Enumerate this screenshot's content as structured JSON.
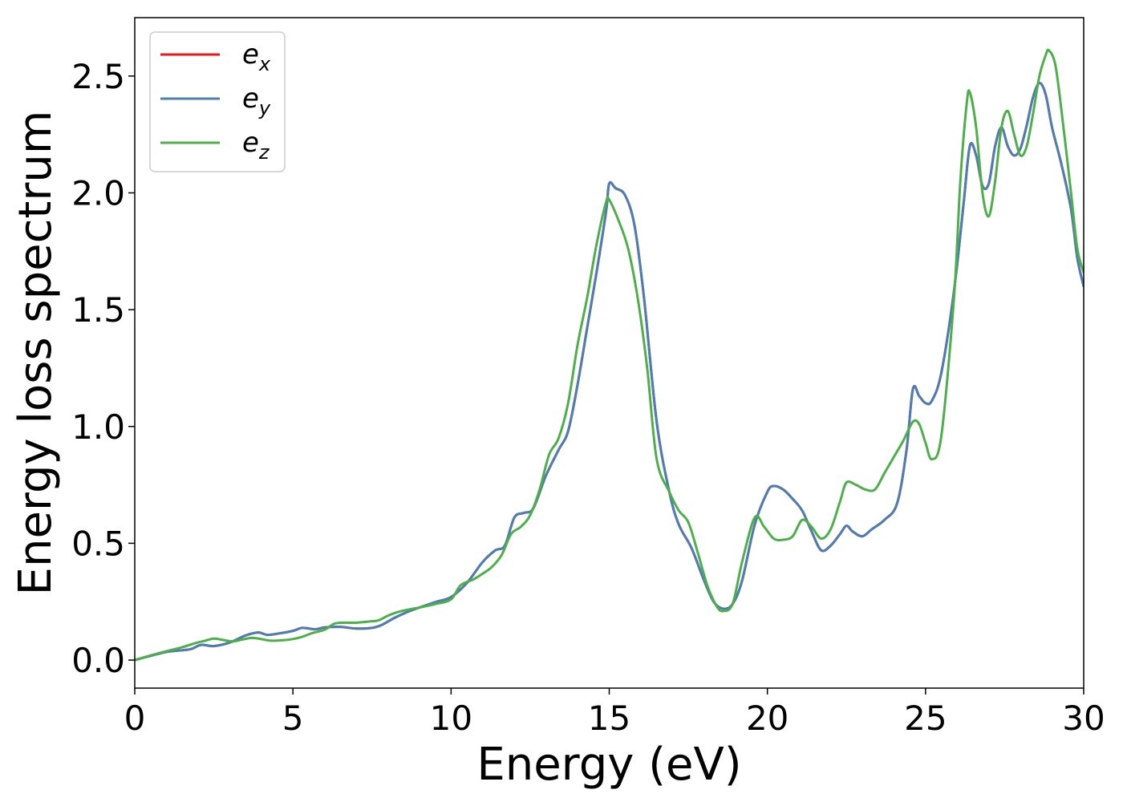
{
  "chart_data": {
    "type": "line",
    "title": "",
    "xlabel": "Energy (eV)",
    "ylabel": "Energy loss spectrum",
    "xlim": [
      0,
      30
    ],
    "ylim": [
      -0.12,
      2.75
    ],
    "x_ticks": [
      0,
      5,
      10,
      15,
      20,
      25,
      30
    ],
    "x_tick_labels": [
      "0",
      "5",
      "10",
      "15",
      "20",
      "25",
      "30"
    ],
    "y_ticks": [
      0.0,
      0.5,
      1.0,
      1.5,
      2.0,
      2.5
    ],
    "y_tick_labels": [
      "0.0",
      "0.5",
      "1.0",
      "1.5",
      "2.0",
      "2.5"
    ],
    "grid": false,
    "legend_position": "top-left",
    "series": [
      {
        "name": "e_x",
        "legend_base": "e",
        "legend_sub": "x",
        "color": "#e41a1c",
        "x": [
          0,
          0.5,
          1.0,
          1.5,
          1.8,
          2.1,
          2.5,
          3.0,
          3.5,
          3.9,
          4.2,
          4.6,
          5.0,
          5.3,
          5.7,
          6.0,
          6.5,
          7.0,
          7.5,
          7.8,
          8.2,
          8.6,
          9.0,
          9.5,
          10.0,
          10.5,
          11.0,
          11.4,
          11.7,
          12.0,
          12.3,
          12.6,
          13.0,
          13.4,
          13.7,
          14.0,
          14.3,
          14.6,
          14.9,
          15.0,
          15.2,
          15.5,
          15.8,
          16.1,
          16.5,
          16.9,
          17.2,
          17.6,
          18.0,
          18.3,
          18.6,
          18.9,
          19.2,
          19.6,
          20.0,
          20.2,
          20.5,
          20.8,
          21.1,
          21.4,
          21.7,
          22.0,
          22.3,
          22.5,
          22.7,
          23.0,
          23.3,
          23.7,
          24.1,
          24.4,
          24.6,
          24.8,
          25.0,
          25.2,
          25.5,
          25.9,
          26.2,
          26.4,
          26.6,
          26.8,
          27.0,
          27.2,
          27.4,
          27.6,
          27.8,
          28.0,
          28.2,
          28.4,
          28.6,
          28.8,
          29.0,
          29.3,
          29.6,
          29.8,
          30.0
        ],
        "y": [
          0.0,
          0.018,
          0.035,
          0.042,
          0.048,
          0.065,
          0.06,
          0.075,
          0.105,
          0.118,
          0.108,
          0.115,
          0.125,
          0.138,
          0.132,
          0.14,
          0.142,
          0.135,
          0.138,
          0.15,
          0.18,
          0.205,
          0.225,
          0.248,
          0.27,
          0.33,
          0.42,
          0.47,
          0.49,
          0.61,
          0.63,
          0.65,
          0.79,
          0.9,
          0.98,
          1.18,
          1.42,
          1.66,
          1.92,
          2.04,
          2.02,
          1.99,
          1.86,
          1.55,
          1.02,
          0.72,
          0.58,
          0.48,
          0.34,
          0.25,
          0.22,
          0.24,
          0.34,
          0.58,
          0.72,
          0.745,
          0.73,
          0.69,
          0.64,
          0.55,
          0.47,
          0.49,
          0.54,
          0.575,
          0.55,
          0.53,
          0.56,
          0.6,
          0.67,
          0.9,
          1.16,
          1.13,
          1.1,
          1.11,
          1.23,
          1.58,
          1.95,
          2.2,
          2.16,
          2.03,
          2.04,
          2.2,
          2.28,
          2.2,
          2.16,
          2.19,
          2.29,
          2.41,
          2.47,
          2.42,
          2.28,
          2.12,
          1.93,
          1.72,
          1.6
        ]
      },
      {
        "name": "e_y",
        "legend_base": "e",
        "legend_sub": "y",
        "color": "#4a7eb5",
        "x": [
          0,
          0.5,
          1.0,
          1.5,
          1.8,
          2.1,
          2.5,
          3.0,
          3.5,
          3.9,
          4.2,
          4.6,
          5.0,
          5.3,
          5.7,
          6.0,
          6.5,
          7.0,
          7.5,
          7.8,
          8.2,
          8.6,
          9.0,
          9.5,
          10.0,
          10.5,
          11.0,
          11.4,
          11.7,
          12.0,
          12.3,
          12.6,
          13.0,
          13.4,
          13.7,
          14.0,
          14.3,
          14.6,
          14.9,
          15.0,
          15.2,
          15.5,
          15.8,
          16.1,
          16.5,
          16.9,
          17.2,
          17.6,
          18.0,
          18.3,
          18.6,
          18.9,
          19.2,
          19.6,
          20.0,
          20.2,
          20.5,
          20.8,
          21.1,
          21.4,
          21.7,
          22.0,
          22.3,
          22.5,
          22.7,
          23.0,
          23.3,
          23.7,
          24.1,
          24.4,
          24.6,
          24.8,
          25.0,
          25.2,
          25.5,
          25.9,
          26.2,
          26.4,
          26.6,
          26.8,
          27.0,
          27.2,
          27.4,
          27.6,
          27.8,
          28.0,
          28.2,
          28.4,
          28.6,
          28.8,
          29.0,
          29.3,
          29.6,
          29.8,
          30.0
        ],
        "y": [
          0.0,
          0.018,
          0.035,
          0.042,
          0.048,
          0.065,
          0.06,
          0.075,
          0.105,
          0.118,
          0.108,
          0.115,
          0.125,
          0.138,
          0.132,
          0.14,
          0.142,
          0.135,
          0.138,
          0.15,
          0.18,
          0.205,
          0.225,
          0.248,
          0.27,
          0.33,
          0.42,
          0.47,
          0.49,
          0.61,
          0.63,
          0.65,
          0.79,
          0.9,
          0.98,
          1.18,
          1.42,
          1.66,
          1.92,
          2.04,
          2.02,
          1.99,
          1.86,
          1.55,
          1.02,
          0.72,
          0.58,
          0.48,
          0.34,
          0.25,
          0.22,
          0.24,
          0.34,
          0.58,
          0.72,
          0.745,
          0.73,
          0.69,
          0.64,
          0.55,
          0.47,
          0.49,
          0.54,
          0.575,
          0.55,
          0.53,
          0.56,
          0.6,
          0.67,
          0.9,
          1.16,
          1.13,
          1.1,
          1.11,
          1.23,
          1.58,
          1.95,
          2.2,
          2.16,
          2.03,
          2.04,
          2.2,
          2.28,
          2.2,
          2.16,
          2.19,
          2.29,
          2.41,
          2.47,
          2.42,
          2.28,
          2.12,
          1.93,
          1.72,
          1.6
        ]
      },
      {
        "name": "e_z",
        "legend_base": "e",
        "legend_sub": "z",
        "color": "#4daf4a",
        "x": [
          0,
          0.5,
          1.0,
          1.5,
          1.9,
          2.2,
          2.5,
          2.8,
          3.1,
          3.4,
          3.7,
          4.0,
          4.3,
          4.7,
          5.0,
          5.3,
          5.6,
          6.0,
          6.3,
          6.6,
          7.0,
          7.4,
          7.7,
          8.0,
          8.3,
          8.6,
          9.0,
          9.5,
          10.0,
          10.3,
          10.7,
          11.0,
          11.3,
          11.6,
          11.9,
          12.2,
          12.5,
          12.8,
          13.1,
          13.4,
          13.7,
          14.0,
          14.3,
          14.6,
          14.9,
          15.0,
          15.3,
          15.6,
          15.9,
          16.2,
          16.5,
          16.9,
          17.2,
          17.5,
          17.8,
          18.1,
          18.4,
          18.6,
          18.9,
          19.2,
          19.6,
          19.9,
          20.2,
          20.5,
          20.8,
          21.1,
          21.4,
          21.7,
          22.0,
          22.3,
          22.5,
          22.8,
          23.1,
          23.4,
          23.7,
          24.0,
          24.3,
          24.6,
          24.8,
          25.0,
          25.2,
          25.5,
          25.9,
          26.1,
          26.3,
          26.4,
          26.6,
          26.8,
          27.0,
          27.2,
          27.4,
          27.6,
          27.8,
          28.0,
          28.2,
          28.4,
          28.6,
          28.8,
          28.9,
          29.1,
          29.3,
          29.6,
          29.8,
          30.0
        ],
        "y": [
          0.0,
          0.02,
          0.038,
          0.055,
          0.072,
          0.082,
          0.092,
          0.086,
          0.08,
          0.088,
          0.095,
          0.09,
          0.083,
          0.085,
          0.09,
          0.1,
          0.115,
          0.13,
          0.155,
          0.16,
          0.16,
          0.165,
          0.17,
          0.19,
          0.205,
          0.215,
          0.225,
          0.24,
          0.26,
          0.32,
          0.345,
          0.37,
          0.4,
          0.45,
          0.54,
          0.57,
          0.62,
          0.73,
          0.88,
          0.95,
          1.1,
          1.35,
          1.55,
          1.78,
          1.96,
          1.97,
          1.88,
          1.76,
          1.55,
          1.25,
          0.86,
          0.72,
          0.64,
          0.59,
          0.46,
          0.32,
          0.23,
          0.21,
          0.24,
          0.42,
          0.61,
          0.57,
          0.52,
          0.515,
          0.53,
          0.6,
          0.57,
          0.52,
          0.56,
          0.68,
          0.76,
          0.75,
          0.73,
          0.73,
          0.8,
          0.87,
          0.94,
          1.02,
          1.01,
          0.93,
          0.86,
          0.96,
          1.55,
          2.05,
          2.38,
          2.43,
          2.28,
          2.0,
          1.9,
          2.05,
          2.28,
          2.35,
          2.25,
          2.16,
          2.2,
          2.34,
          2.5,
          2.59,
          2.61,
          2.55,
          2.35,
          2.0,
          1.76,
          1.66
        ]
      }
    ]
  }
}
